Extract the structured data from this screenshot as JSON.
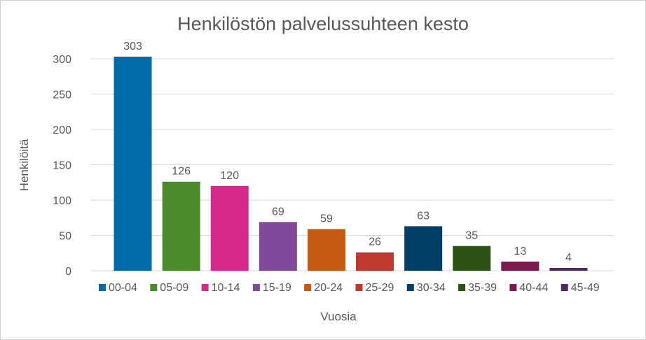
{
  "chart_data": {
    "type": "bar",
    "title": "Henkilöstön palvelussuhteen kesto",
    "xlabel": "Vuosia",
    "ylabel": "Henkilöitä",
    "categories": [
      "00-04",
      "05-09",
      "10-14",
      "15-19",
      "20-24",
      "25-29",
      "30-34",
      "35-39",
      "40-44",
      "45-49"
    ],
    "values": [
      303,
      126,
      120,
      69,
      59,
      26,
      63,
      35,
      13,
      4
    ],
    "colors": [
      "#006BA8",
      "#4A8A2B",
      "#D62A8A",
      "#7F4A99",
      "#C65A12",
      "#C0392F",
      "#023F66",
      "#2C5216",
      "#7C1A4F",
      "#4B2A66"
    ],
    "yticks": [
      0,
      50,
      100,
      150,
      200,
      250,
      300
    ],
    "ylim": [
      0,
      300
    ],
    "grid": true,
    "legend": "bottom",
    "data_labels": true
  }
}
